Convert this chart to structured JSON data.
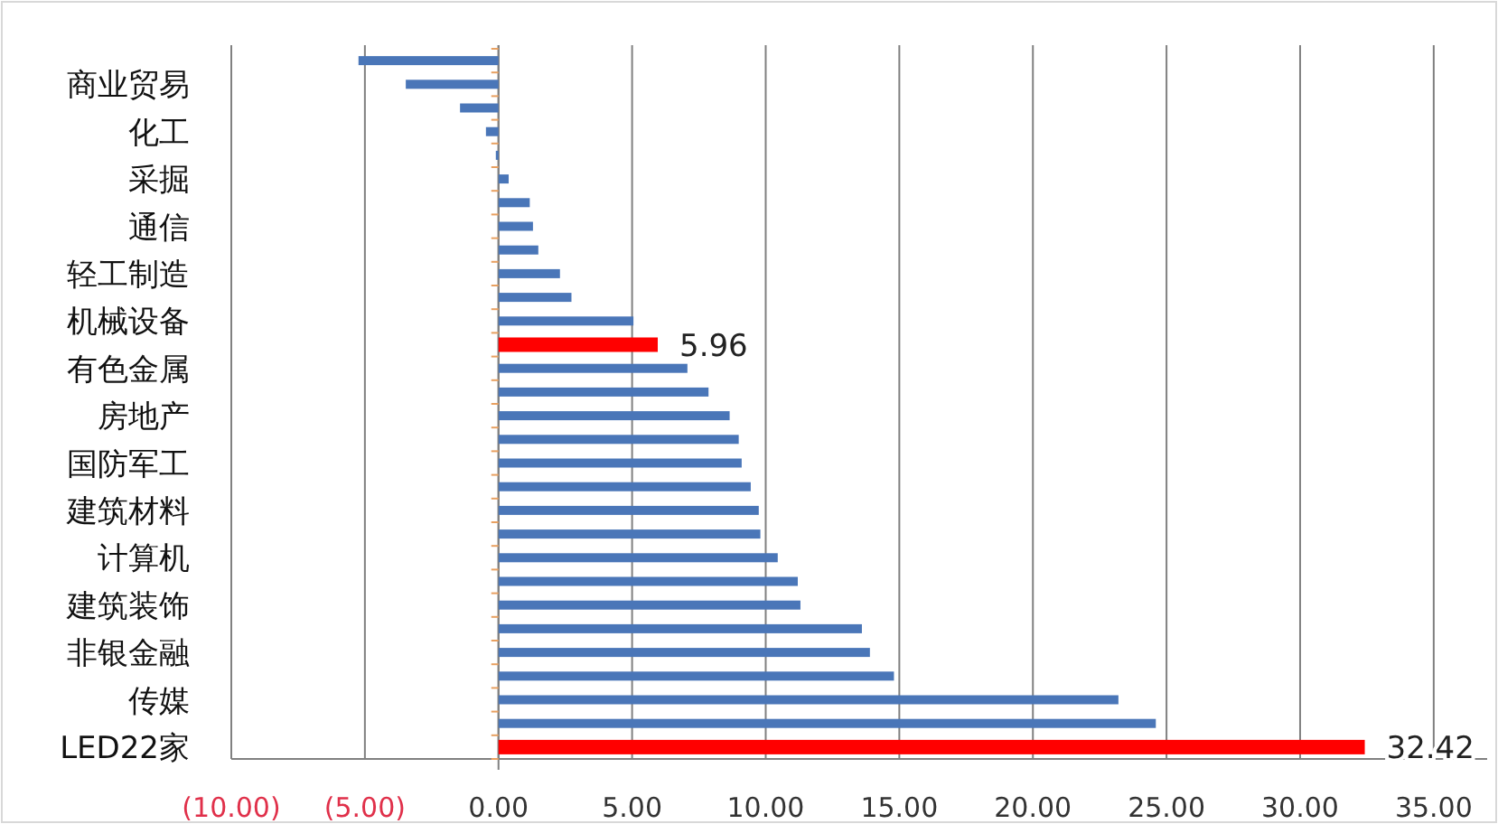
{
  "chart_data": {
    "type": "bar",
    "orientation": "horizontal",
    "categories": [
      null,
      "商业贸易",
      null,
      "化工",
      null,
      "采掘",
      null,
      "通信",
      null,
      "轻工制造",
      null,
      "机械设备",
      null,
      "有色金属",
      null,
      "房地产",
      null,
      "国防军工",
      null,
      "建筑材料",
      null,
      "计算机",
      null,
      "建筑装饰",
      null,
      "非银金融",
      null,
      "传媒",
      null,
      "LED22家"
    ],
    "values": [
      -5.24,
      -3.47,
      -1.44,
      -0.47,
      -0.1,
      0.38,
      1.17,
      1.29,
      1.49,
      2.3,
      2.73,
      5.05,
      5.96,
      7.07,
      7.86,
      8.65,
      8.99,
      9.1,
      9.44,
      9.74,
      9.8,
      10.45,
      11.2,
      11.3,
      13.6,
      13.9,
      14.8,
      23.2,
      24.6,
      32.42
    ],
    "colors": [
      "#4a76b8",
      "#4a76b8",
      "#4a76b8",
      "#4a76b8",
      "#4a76b8",
      "#4a76b8",
      "#4a76b8",
      "#4a76b8",
      "#4a76b8",
      "#4a76b8",
      "#4a76b8",
      "#4a76b8",
      "#ff0000",
      "#4a76b8",
      "#4a76b8",
      "#4a76b8",
      "#4a76b8",
      "#4a76b8",
      "#4a76b8",
      "#4a76b8",
      "#4a76b8",
      "#4a76b8",
      "#4a76b8",
      "#4a76b8",
      "#4a76b8",
      "#4a76b8",
      "#4a76b8",
      "#4a76b8",
      "#4a76b8",
      "#ff0000"
    ],
    "value_labels": [
      null,
      null,
      null,
      null,
      null,
      null,
      null,
      null,
      null,
      null,
      null,
      null,
      "5.96",
      null,
      null,
      null,
      null,
      null,
      null,
      null,
      null,
      null,
      null,
      null,
      null,
      null,
      null,
      null,
      null,
      "32.42"
    ],
    "xlim": [
      -10,
      37
    ],
    "xticks": [
      {
        "value": -10,
        "label": "(10.00)"
      },
      {
        "value": -5,
        "label": "(5.00)"
      },
      {
        "value": 0,
        "label": "0.00"
      },
      {
        "value": 5,
        "label": "5.00"
      },
      {
        "value": 10,
        "label": "10.00"
      },
      {
        "value": 15,
        "label": "15.00"
      },
      {
        "value": 20,
        "label": "20.00"
      },
      {
        "value": 25,
        "label": "25.00"
      },
      {
        "value": 30,
        "label": "30.00"
      },
      {
        "value": 35,
        "label": "35.00"
      }
    ],
    "grid": "x"
  }
}
